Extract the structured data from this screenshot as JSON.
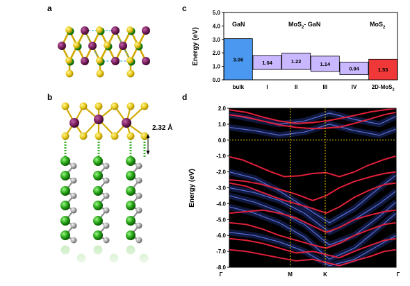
{
  "panels": {
    "a": "a",
    "b": "b",
    "c": "c",
    "d": "d"
  },
  "structure_b": {
    "distance_label": "2.32 Å"
  },
  "chart_data": [
    {
      "type": "bar",
      "panel": "c",
      "categories": [
        "bulk",
        "I",
        "II",
        "III",
        "IV",
        "2D-MoS2"
      ],
      "category_labels": [
        "bulk",
        "I",
        "II",
        "III",
        "IV",
        "2D-MoS"
      ],
      "category_subscripts": [
        "",
        "",
        "",
        "",
        "",
        "2"
      ],
      "values": [
        3.06,
        1.04,
        1.22,
        1.14,
        0.94,
        1.53
      ],
      "ranges": [
        [
          0.0,
          3.06
        ],
        [
          0.77,
          1.81
        ],
        [
          0.77,
          1.99
        ],
        [
          0.62,
          1.76
        ],
        [
          0.38,
          1.32
        ],
        [
          0.0,
          1.53
        ]
      ],
      "colors": [
        "#4a98f0",
        "#c9b8ff",
        "#c9b8ff",
        "#c9b8ff",
        "#c9b8ff",
        "#f03838"
      ],
      "group_labels": {
        "left": "GaN",
        "middle": "MoS",
        "middle_sub": "2",
        "middle_suffix": "- GaN",
        "right": "MoS",
        "right_sub": "2"
      },
      "ylabel": "Energy (eV)",
      "ylim": [
        0,
        5.0
      ],
      "yticks": [
        "0.0",
        "1.0",
        "2.0",
        "3.0",
        "4.0",
        "5.0"
      ]
    },
    {
      "type": "line",
      "panel": "d",
      "ylabel": "Energy (eV)",
      "ylim": [
        -8.0,
        2.0
      ],
      "yticks": [
        "2.0",
        "1.0",
        "0.0",
        "-1.0",
        "-2.0",
        "-3.0",
        "-4.0",
        "-5.0",
        "-6.0",
        "-7.0",
        "-8.0"
      ],
      "xticks": [
        "Γ",
        "M",
        "K",
        "Γ"
      ],
      "fermi_level": 0.0,
      "band_color": "#e0203a",
      "projected_color": "#3a55e0",
      "bands": [
        {
          "x": [
            0,
            0.1,
            0.2,
            0.3,
            0.4,
            0.5,
            0.58,
            0.66,
            0.75,
            0.85,
            0.93,
            1.0
          ],
          "y": [
            1.6,
            1.45,
            1.2,
            0.95,
            0.8,
            0.72,
            0.75,
            0.82,
            1.05,
            1.35,
            1.6,
            1.75
          ]
        },
        {
          "x": [
            0,
            0.1,
            0.2,
            0.3,
            0.4,
            0.5,
            0.58,
            0.66,
            0.75,
            0.85,
            0.93,
            1.0
          ],
          "y": [
            1.9,
            1.75,
            1.45,
            1.2,
            1.05,
            1.1,
            1.2,
            1.35,
            1.55,
            1.78,
            1.9,
            2.0
          ]
        },
        {
          "x": [
            0,
            0.08,
            0.16,
            0.25,
            0.33,
            0.42,
            0.5,
            0.58,
            0.66,
            0.75,
            0.83,
            0.92,
            1.0
          ],
          "y": [
            -1.05,
            -1.25,
            -1.6,
            -2.0,
            -2.3,
            -2.25,
            -2.1,
            -2.05,
            -2.3,
            -2.0,
            -1.6,
            -1.25,
            -1.0
          ]
        },
        {
          "x": [
            0,
            0.1,
            0.2,
            0.3,
            0.4,
            0.5,
            0.58,
            0.66,
            0.75,
            0.85,
            0.93,
            1.0
          ],
          "y": [
            -2.5,
            -2.6,
            -2.8,
            -3.1,
            -3.4,
            -3.8,
            -3.5,
            -3.0,
            -2.6,
            -2.3,
            -2.1,
            -2.0
          ]
        },
        {
          "x": [
            0,
            0.1,
            0.2,
            0.3,
            0.4,
            0.5,
            0.58,
            0.66,
            0.75,
            0.85,
            0.93,
            1.0
          ],
          "y": [
            -2.7,
            -2.9,
            -3.3,
            -3.7,
            -4.0,
            -4.3,
            -4.6,
            -4.2,
            -3.6,
            -3.1,
            -2.8,
            -2.7
          ]
        },
        {
          "x": [
            0,
            0.1,
            0.2,
            0.3,
            0.4,
            0.5,
            0.58,
            0.66,
            0.75,
            0.85,
            0.93,
            1.0
          ],
          "y": [
            -4.6,
            -4.5,
            -4.4,
            -4.6,
            -4.9,
            -5.4,
            -5.8,
            -5.5,
            -5.0,
            -4.7,
            -4.5,
            -4.4
          ]
        },
        {
          "x": [
            0,
            0.1,
            0.2,
            0.3,
            0.4,
            0.5,
            0.58,
            0.66,
            0.75,
            0.85,
            0.93,
            1.0
          ],
          "y": [
            -5.2,
            -5.3,
            -5.6,
            -6.0,
            -6.3,
            -6.6,
            -6.8,
            -6.5,
            -6.0,
            -5.6,
            -5.3,
            -5.2
          ]
        },
        {
          "x": [
            0,
            0.1,
            0.2,
            0.3,
            0.4,
            0.5,
            0.58,
            0.66,
            0.75,
            0.85,
            0.93,
            1.0
          ],
          "y": [
            -6.2,
            -6.3,
            -6.5,
            -6.8,
            -7.1,
            -7.0,
            -7.2,
            -7.4,
            -7.0,
            -6.6,
            -6.3,
            -6.2
          ]
        },
        {
          "x": [
            0,
            0.1,
            0.2,
            0.3,
            0.4,
            0.5,
            0.58,
            0.66,
            0.75,
            0.85,
            0.93,
            1.0
          ],
          "y": [
            -6.9,
            -7.0,
            -7.2,
            -7.4,
            -7.6,
            -7.5,
            -7.7,
            -7.9,
            -7.6,
            -7.3,
            -7.0,
            -6.9
          ]
        }
      ],
      "projected_bands": [
        {
          "x": [
            0,
            0.15,
            0.3,
            0.45,
            0.6,
            0.75,
            0.9,
            1.0
          ],
          "y": [
            -2.0,
            -2.4,
            -3.2,
            -4.2,
            -5.2,
            -4.3,
            -3.0,
            -2.2
          ]
        },
        {
          "x": [
            0,
            0.15,
            0.3,
            0.45,
            0.6,
            0.75,
            0.9,
            1.0
          ],
          "y": [
            -3.0,
            -3.3,
            -3.8,
            -4.6,
            -5.8,
            -5.0,
            -4.0,
            -3.2
          ]
        },
        {
          "x": [
            0,
            0.15,
            0.3,
            0.45,
            0.6,
            0.75,
            0.9,
            1.0
          ],
          "y": [
            -3.5,
            -3.9,
            -4.5,
            -5.3,
            -6.6,
            -6.0,
            -4.8,
            -3.9
          ]
        },
        {
          "x": [
            0,
            0.15,
            0.3,
            0.45,
            0.6,
            0.75,
            0.9,
            1.0
          ],
          "y": [
            -4.2,
            -4.6,
            -5.2,
            -6.1,
            -7.5,
            -6.8,
            -5.5,
            -4.6
          ]
        },
        {
          "x": [
            0,
            0.15,
            0.3,
            0.45,
            0.6,
            0.75,
            0.9,
            1.0
          ],
          "y": [
            -5.8,
            -6.0,
            -6.4,
            -7.0,
            -7.9,
            -7.5,
            -6.6,
            -6.0
          ]
        },
        {
          "x": [
            0,
            0.15,
            0.3,
            0.45,
            0.6,
            0.75,
            0.9,
            1.0
          ],
          "y": [
            0.8,
            0.6,
            0.3,
            0.5,
            1.0,
            0.6,
            0.3,
            0.7
          ]
        },
        {
          "x": [
            0,
            0.15,
            0.3,
            0.45,
            0.6,
            0.75,
            0.9,
            1.0
          ],
          "y": [
            1.6,
            1.3,
            1.0,
            1.2,
            1.7,
            1.3,
            1.0,
            1.5
          ]
        }
      ]
    }
  ]
}
